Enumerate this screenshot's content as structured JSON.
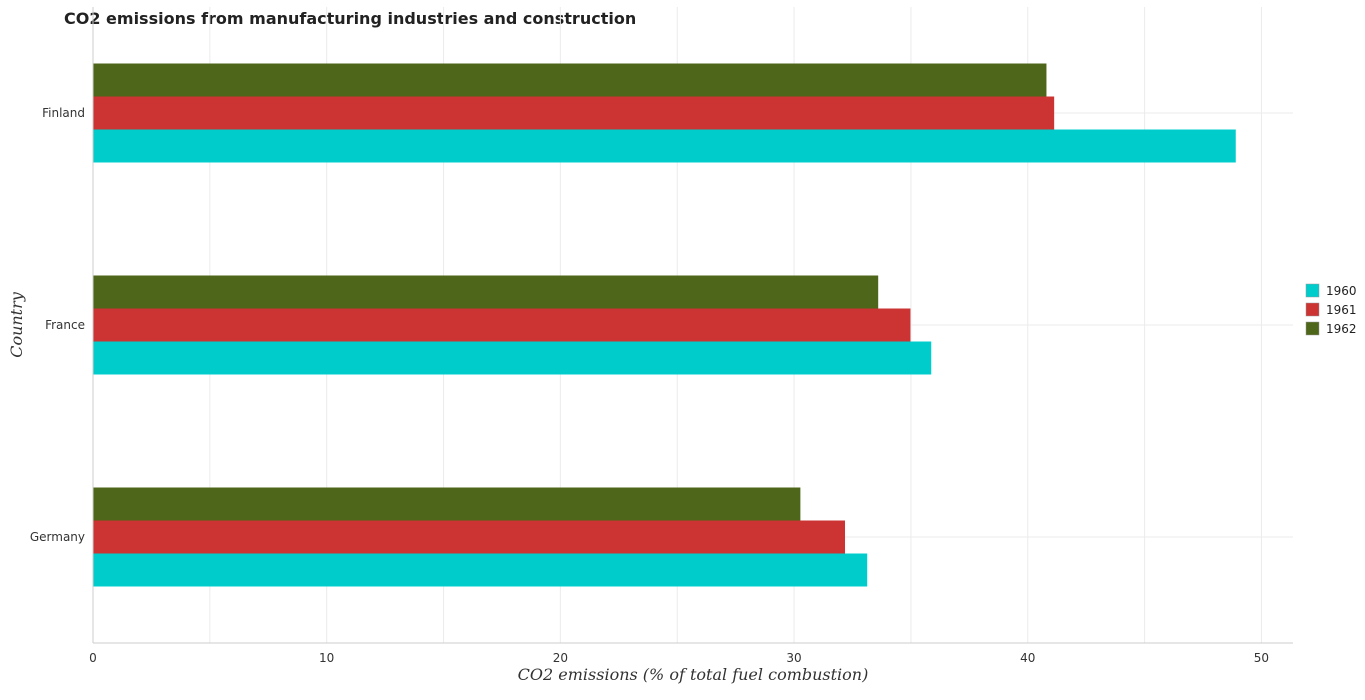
{
  "chart_data": {
    "type": "bar",
    "orientation": "horizontal",
    "title": "CO2 emissions from manufacturing industries and construction",
    "xlabel": "CO2 emissions (% of total fuel combustion)",
    "ylabel": "Country",
    "categories": [
      "Finland",
      "France",
      "Germany"
    ],
    "series": [
      {
        "name": "1960",
        "color": "#00cccc",
        "values": [
          48.9,
          35.87,
          33.13
        ]
      },
      {
        "name": "1961",
        "color": "#cc3333",
        "values": [
          41.13,
          34.98,
          32.18
        ]
      },
      {
        "name": "1962",
        "color": "#4d6619",
        "values": [
          40.8,
          33.6,
          30.27
        ]
      }
    ],
    "xlim": [
      0,
      51.35
    ],
    "xticks": [
      0,
      10,
      20,
      30,
      40,
      50
    ],
    "xtick_labels": [
      "0",
      "10",
      "20",
      "30",
      "40",
      "50"
    ],
    "grid": true,
    "legend_position": "right"
  }
}
